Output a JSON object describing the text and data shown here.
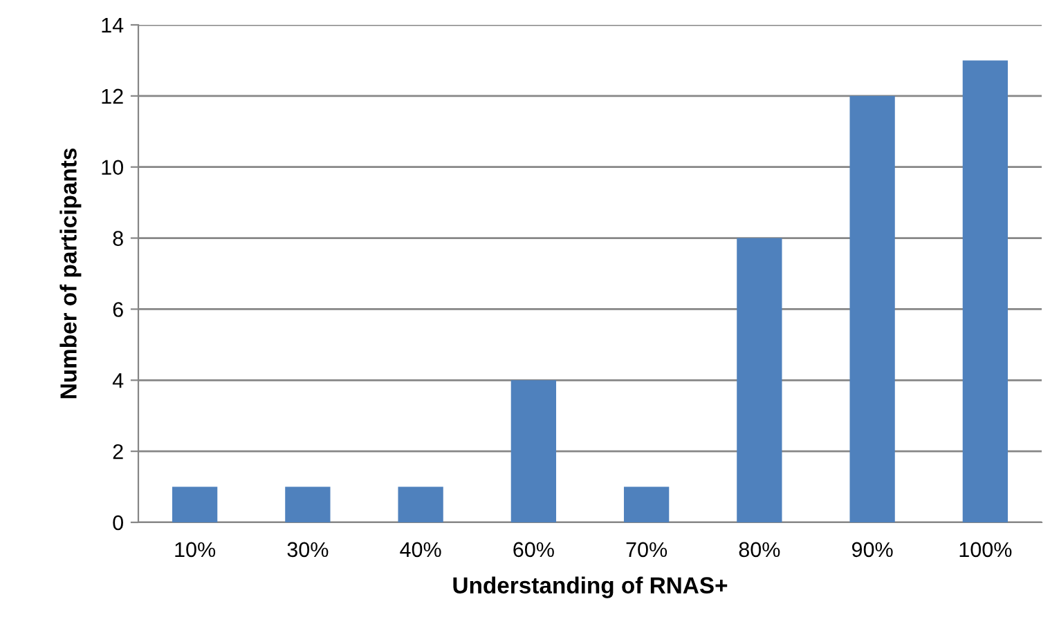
{
  "chart_data": {
    "type": "bar",
    "xlabel": "Understanding of RNAS+",
    "ylabel": "Number of participants",
    "categories": [
      "10%",
      "30%",
      "40%",
      "60%",
      "70%",
      "80%",
      "90%",
      "100%"
    ],
    "values": [
      1,
      1,
      1,
      4,
      1,
      8,
      12,
      13
    ],
    "color": "#4f81bd",
    "ylim": [
      0,
      14
    ],
    "yticks": [
      0,
      2,
      4,
      6,
      8,
      10,
      12,
      14
    ],
    "grid": "y",
    "legend": false
  }
}
